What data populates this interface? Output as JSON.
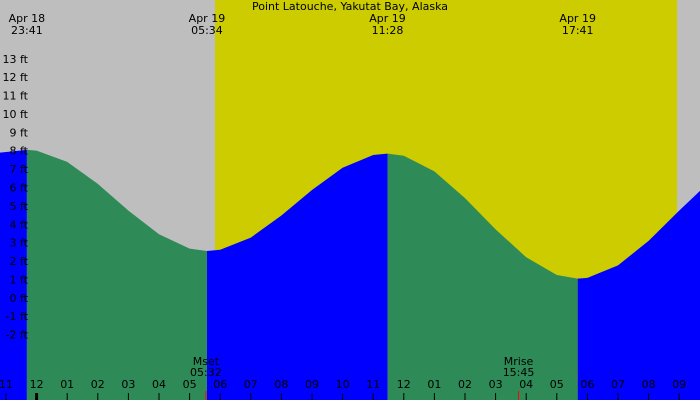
{
  "chart_data": {
    "type": "tide",
    "title": "Point Latouche, Yakutat Bay, Alaska",
    "xlim": [
      22.804,
      45.68
    ],
    "ylim": [
      -5.5,
      16.25
    ],
    "night_color": "#bebebe",
    "day_color": "#cccc00",
    "daylight": [
      29.83,
      44.93
    ],
    "grid": true,
    "yticks": [
      {
        "value": -2,
        "label": "-2 ft"
      },
      {
        "value": -1,
        "label": "-1 ft"
      },
      {
        "value": 0,
        "label": "0 ft"
      },
      {
        "value": 1,
        "label": "1 ft"
      },
      {
        "value": 2,
        "label": "2 ft"
      },
      {
        "value": 3,
        "label": "3 ft"
      },
      {
        "value": 4,
        "label": "4 ft"
      },
      {
        "value": 5,
        "label": "5 ft"
      },
      {
        "value": 6,
        "label": "6 ft"
      },
      {
        "value": 7,
        "label": "7 ft"
      },
      {
        "value": 8,
        "label": "8 ft"
      },
      {
        "value": 9,
        "label": "9 ft"
      },
      {
        "value": 10,
        "label": "10 ft"
      },
      {
        "value": 11,
        "label": "11 ft"
      },
      {
        "value": 12,
        "label": "12 ft"
      },
      {
        "value": 13,
        "label": "13 ft"
      }
    ],
    "xticks": [
      {
        "value": 23,
        "label": "11"
      },
      {
        "value": 24,
        "label": "12"
      },
      {
        "value": 25,
        "label": "01"
      },
      {
        "value": 26,
        "label": "02"
      },
      {
        "value": 27,
        "label": "03"
      },
      {
        "value": 28,
        "label": "04"
      },
      {
        "value": 29,
        "label": "05"
      },
      {
        "value": 30,
        "label": "06"
      },
      {
        "value": 31,
        "label": "07"
      },
      {
        "value": 32,
        "label": "08"
      },
      {
        "value": 33,
        "label": "09"
      },
      {
        "value": 34,
        "label": "10"
      },
      {
        "value": 35,
        "label": "11"
      },
      {
        "value": 36,
        "label": "12"
      },
      {
        "value": 37,
        "label": "01"
      },
      {
        "value": 38,
        "label": "02"
      },
      {
        "value": 39,
        "label": "03"
      },
      {
        "value": 40,
        "label": "04"
      },
      {
        "value": 41,
        "label": "05"
      },
      {
        "value": 42,
        "label": "06"
      },
      {
        "value": 43,
        "label": "07"
      },
      {
        "value": 44,
        "label": "08"
      },
      {
        "value": 45,
        "label": "09"
      }
    ],
    "extremes": [
      {
        "x": 23.683,
        "date": "Apr 18",
        "time": "23:41"
      },
      {
        "x": 29.567,
        "date": "Apr 19",
        "time": "05:34"
      },
      {
        "x": 35.467,
        "date": "Apr 19",
        "time": "11:28"
      },
      {
        "x": 41.683,
        "date": "Apr 19",
        "time": "17:41"
      }
    ],
    "moon": [
      {
        "x": 29.533,
        "label": "Mset",
        "time": "05:32"
      },
      {
        "x": 39.75,
        "label": "Mrise",
        "time": "15:45"
      }
    ],
    "moon_color": "#ff0000",
    "series": [
      {
        "color": "#0000ff",
        "x": [
          22.8,
          23.683
        ],
        "values": [
          7.95,
          8.1
        ]
      },
      {
        "color": "#2e8b57",
        "x": [
          23.683,
          24,
          25,
          26,
          27,
          28,
          29,
          29.567
        ],
        "values": [
          8.1,
          8.06,
          7.45,
          6.25,
          4.8,
          3.51,
          2.73,
          2.6
        ]
      },
      {
        "color": "#0000ff",
        "x": [
          29.567,
          30,
          31,
          32,
          33,
          34,
          35,
          35.467
        ],
        "values": [
          2.6,
          2.67,
          3.33,
          4.53,
          5.92,
          7.13,
          7.82,
          7.9
        ]
      },
      {
        "color": "#2e8b57",
        "x": [
          35.467,
          36,
          37,
          38,
          39,
          40,
          41,
          41.683
        ],
        "values": [
          7.9,
          7.78,
          6.93,
          5.48,
          3.78,
          2.26,
          1.3,
          1.1
        ]
      },
      {
        "color": "#0000ff",
        "x": [
          41.683,
          42,
          43,
          44,
          45,
          45.68
        ],
        "values": [
          1.1,
          1.14,
          1.82,
          3.15,
          4.8,
          5.87
        ]
      }
    ]
  }
}
